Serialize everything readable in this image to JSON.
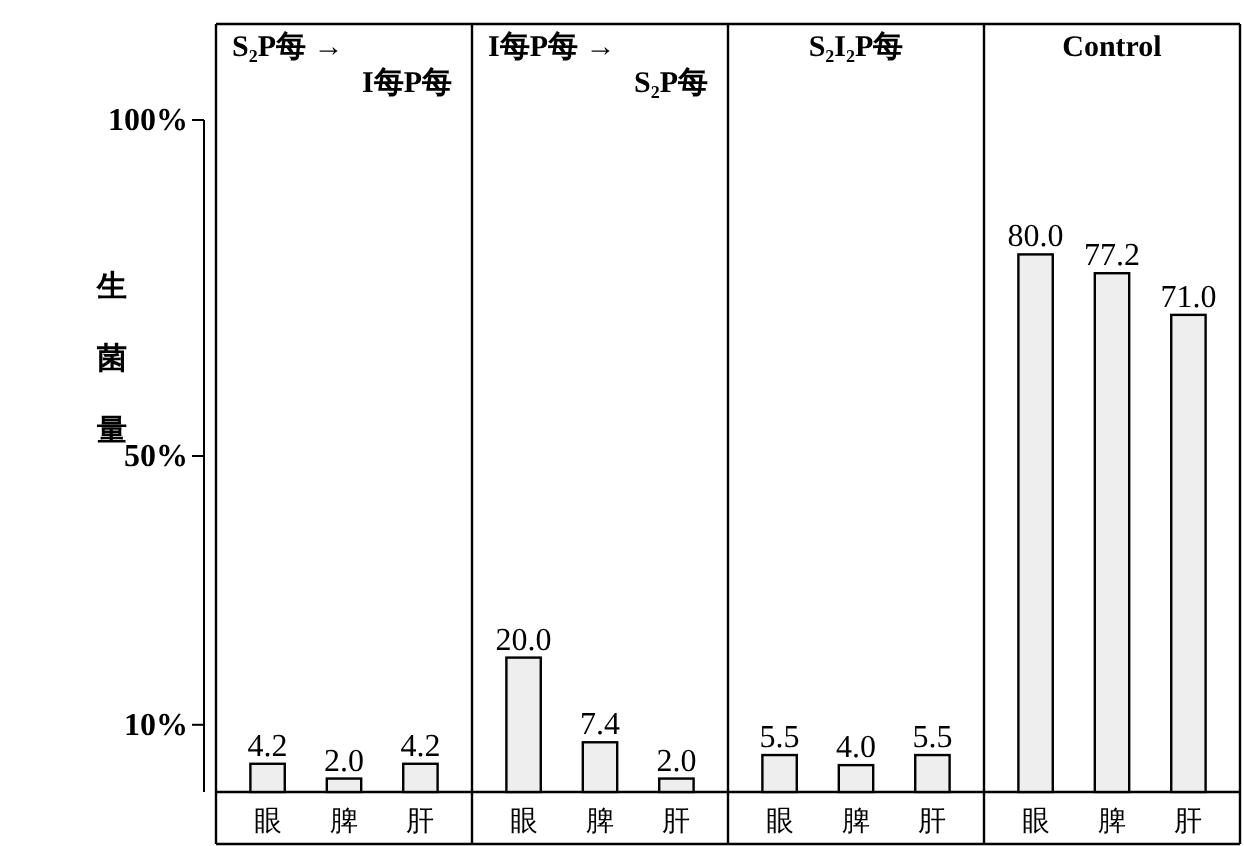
{
  "chart_data": [
    {
      "type": "bar",
      "title": "S₂P每 →",
      "subtitle": "I每P每",
      "ylabel": "生菌量",
      "categories": [
        "眼",
        "脾",
        "肝"
      ],
      "values": [
        4.2,
        2.0,
        4.2
      ],
      "value_labels": [
        "4.2",
        "2.0",
        "4.2"
      ],
      "color": "#eeeeee",
      "ylim": [
        0,
        100
      ],
      "yticks": [
        {
          "value": 10,
          "label": "10%"
        },
        {
          "value": 50,
          "label": "50%"
        },
        {
          "value": 100,
          "label": "100%"
        }
      ]
    },
    {
      "type": "bar",
      "title": "I每P每 →",
      "subtitle": "S₂P每",
      "categories": [
        "眼",
        "脾",
        "肝"
      ],
      "values": [
        20.0,
        7.4,
        2.0
      ],
      "value_labels": [
        "20.0",
        "7.4",
        "2.0"
      ],
      "color": "#eeeeee",
      "ylim": [
        0,
        100
      ],
      "tick_labels": "x"
    },
    {
      "type": "bar",
      "title": "S₂I₂P每",
      "categories": [
        "眼",
        "脾",
        "肝"
      ],
      "values": [
        5.5,
        4.0,
        5.5
      ],
      "value_labels": [
        "5.5",
        "4.0",
        "5.5"
      ],
      "color": "#eeeeee",
      "ylim": [
        0,
        100
      ],
      "tick_labels": "x"
    },
    {
      "type": "bar",
      "title": "Control",
      "categories": [
        "眼",
        "脾",
        "肝"
      ],
      "values": [
        80.0,
        77.2,
        71.0
      ],
      "value_labels": [
        "80.0",
        "77.2",
        "71.0"
      ],
      "color": "#eeeeee",
      "ylim": [
        0,
        100
      ],
      "tick_labels": "x"
    }
  ]
}
